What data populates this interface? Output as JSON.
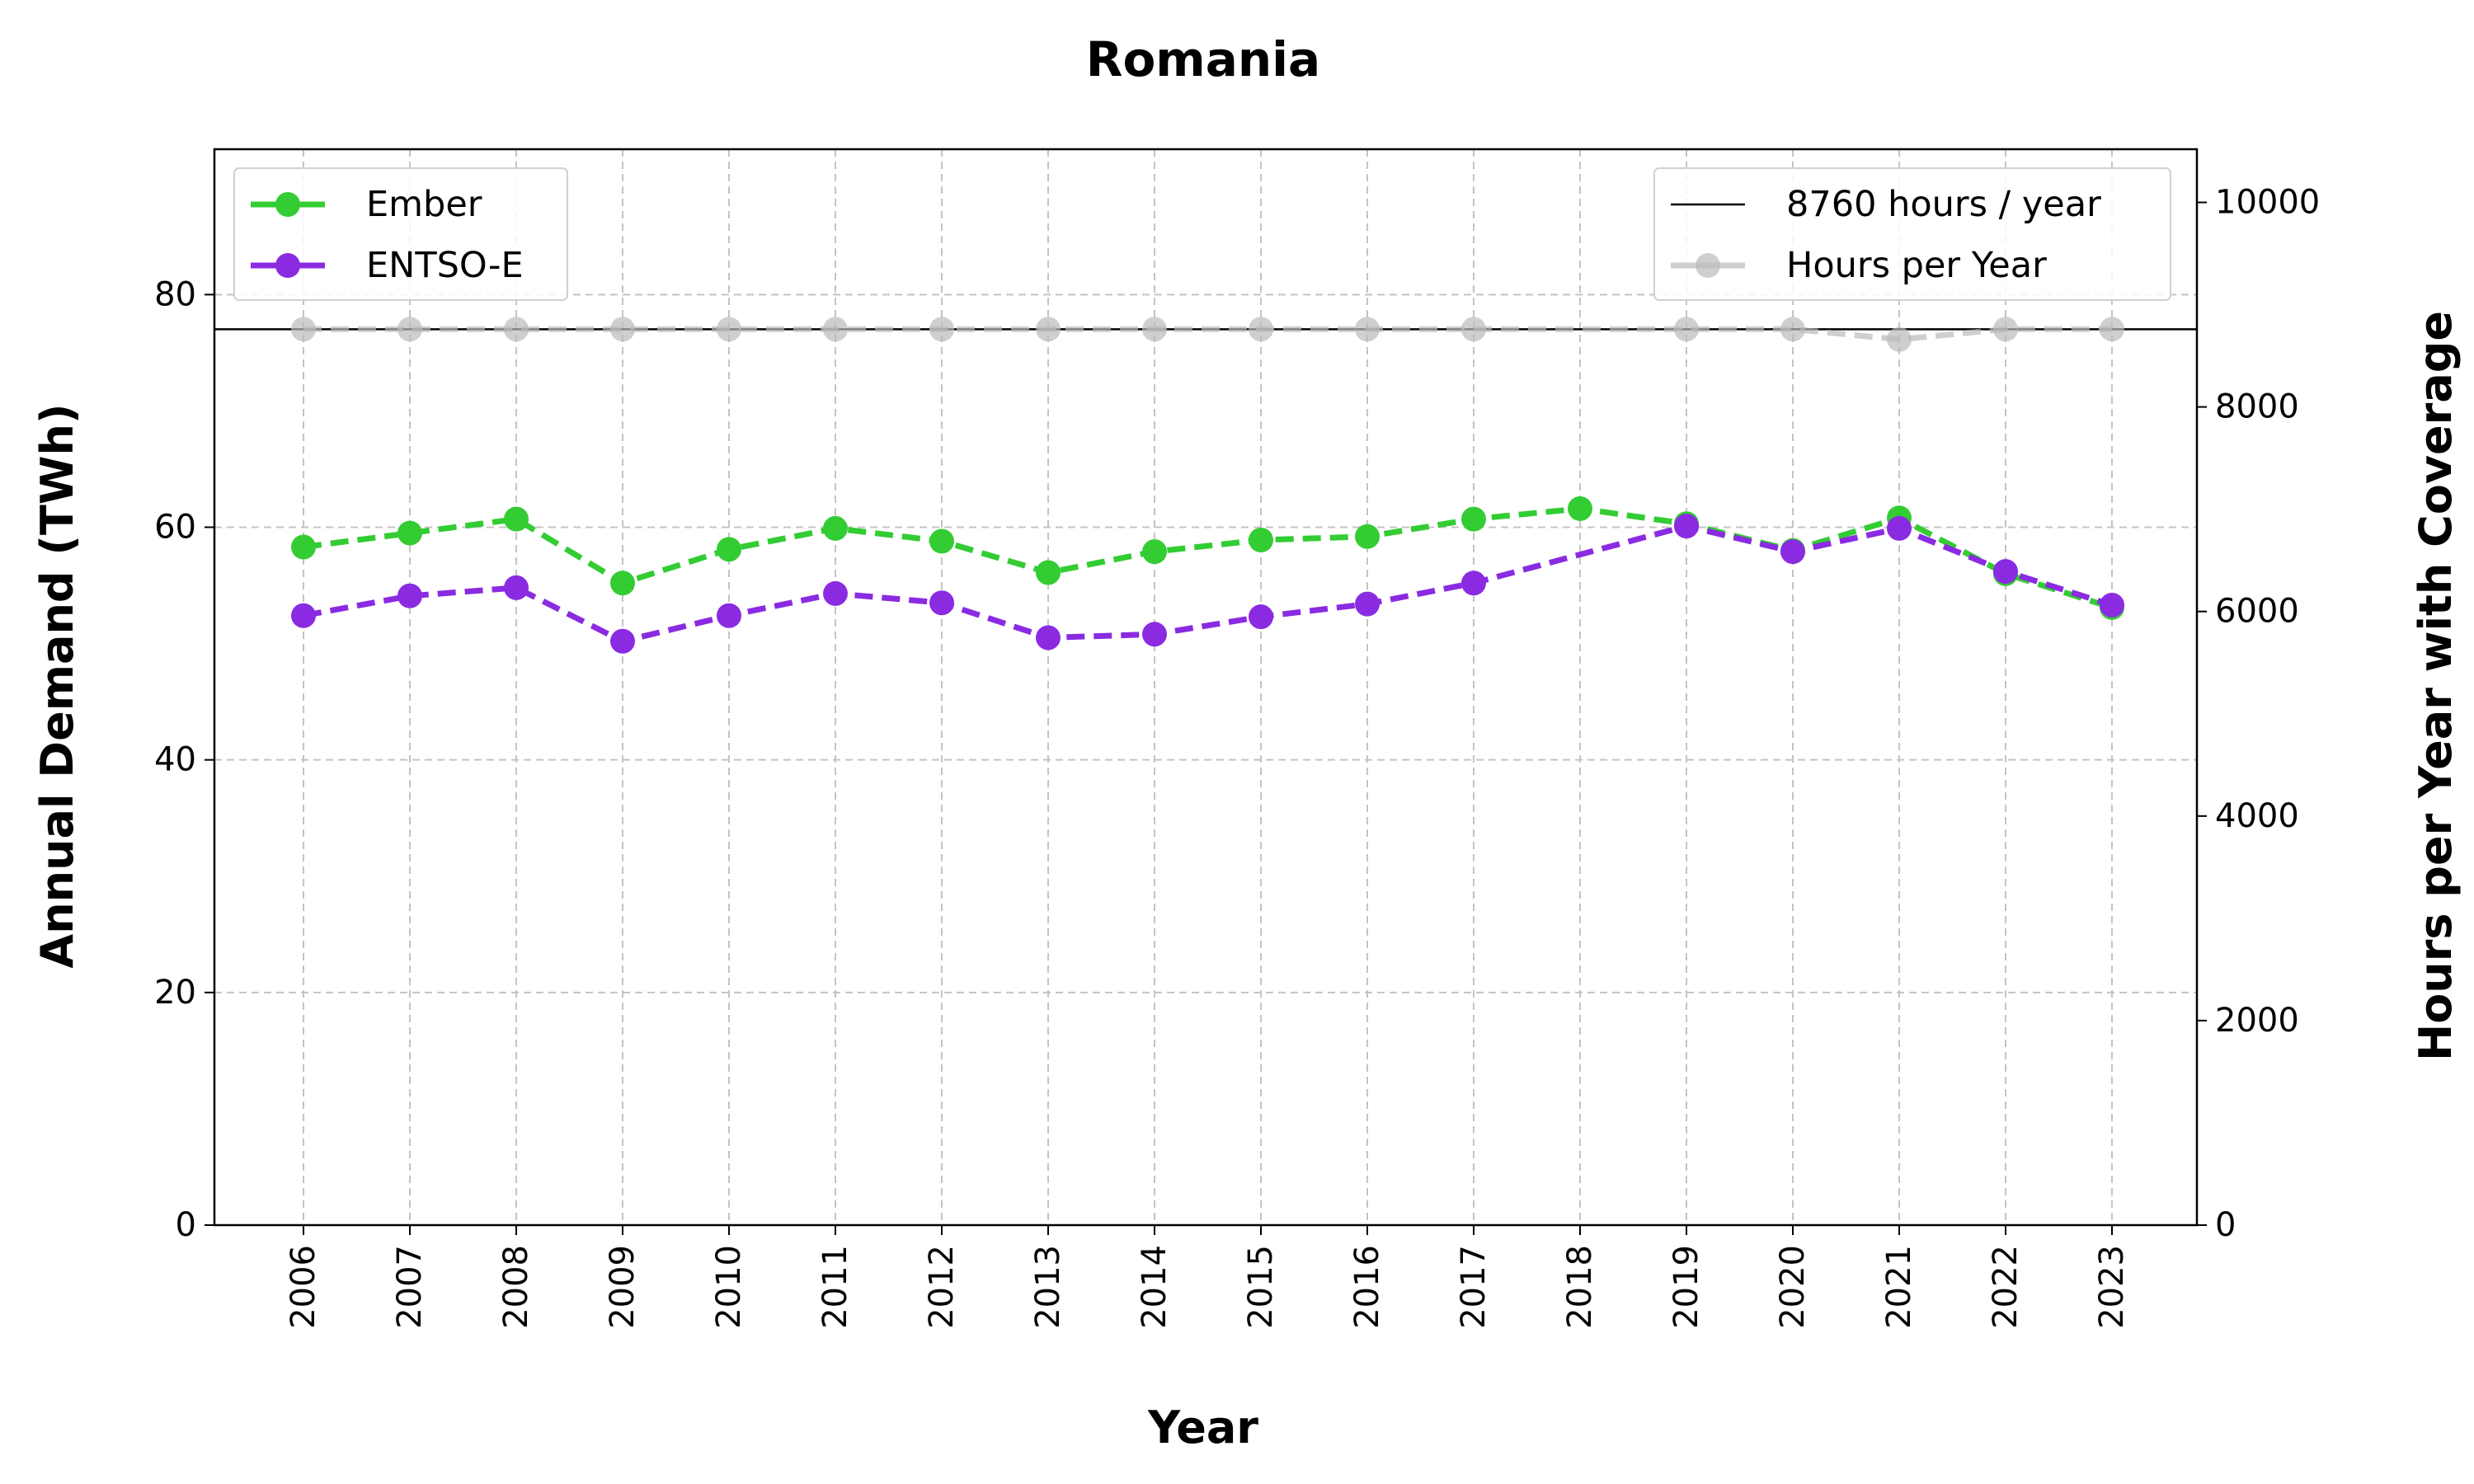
{
  "chart_data": {
    "type": "line",
    "title": "Romania",
    "xlabel": "Year",
    "ylabel": "Annual Demand (TWh)",
    "y2label": "Hours per Year with Coverage",
    "x": [
      "2006",
      "2007",
      "2008",
      "2009",
      "2010",
      "2011",
      "2012",
      "2013",
      "2014",
      "2015",
      "2016",
      "2017",
      "2018",
      "2019",
      "2020",
      "2021",
      "2022",
      "2023"
    ],
    "ylim": [
      0,
      92.5
    ],
    "yticks": [
      "0",
      "20",
      "40",
      "60",
      "80"
    ],
    "y2lim": [
      0,
      10520
    ],
    "y2ticks": [
      "0",
      "2000",
      "4000",
      "6000",
      "8000",
      "10000"
    ],
    "grid": true,
    "series": [
      {
        "name": "Ember",
        "axis": "left",
        "color": "#33cc33",
        "values": [
          58.3,
          59.5,
          60.7,
          55.2,
          58.1,
          59.9,
          58.8,
          56.1,
          57.9,
          58.9,
          59.2,
          60.7,
          61.6,
          60.3,
          58.0,
          60.8,
          56.0,
          53.1
        ]
      },
      {
        "name": "ENTSO-E",
        "axis": "left",
        "color": "#8a2be2",
        "values": [
          52.4,
          54.1,
          54.8,
          50.2,
          52.4,
          54.3,
          53.5,
          50.5,
          50.8,
          52.3,
          53.4,
          55.2,
          null,
          60.1,
          57.9,
          59.9,
          56.2,
          53.3
        ]
      },
      {
        "name": "Hours per Year",
        "axis": "right",
        "color": "#bbbbbb",
        "values": [
          8760,
          8760,
          8760,
          8760,
          8760,
          8760,
          8760,
          8760,
          8760,
          8760,
          8760,
          8760,
          null,
          8760,
          8760,
          8660,
          8760,
          8760
        ]
      }
    ],
    "reference_line": {
      "name": "8760 hours / year",
      "axis": "right",
      "value": 8760,
      "color": "#000000"
    },
    "legend_left": {
      "placement": "top-left",
      "items": [
        "Ember",
        "ENTSO-E"
      ]
    },
    "legend_right": {
      "placement": "top-right",
      "items": [
        "8760 hours / year",
        "Hours per Year"
      ]
    }
  }
}
